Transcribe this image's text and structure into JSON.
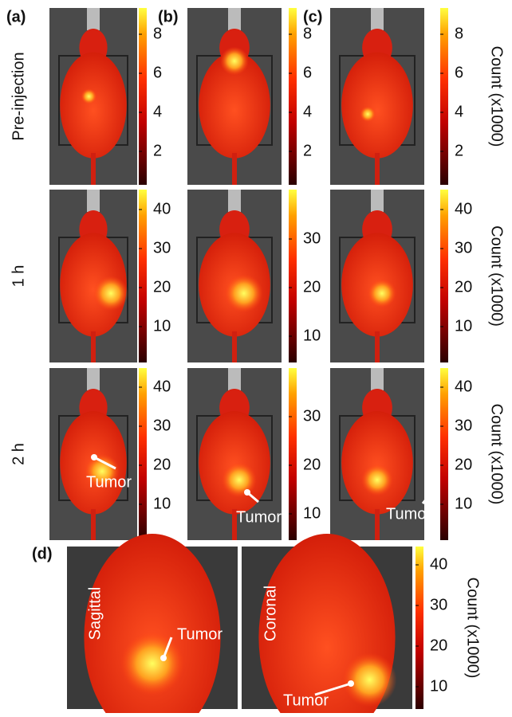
{
  "panel_labels": [
    "(a)",
    "(b)",
    "(c)",
    "(d)"
  ],
  "rows": [
    {
      "label": "Pre-injection",
      "count_label": "Count (x1000)",
      "colorbars": [
        [
          2,
          4,
          6,
          8
        ],
        [
          2,
          4,
          6,
          8
        ],
        [
          2,
          4,
          6,
          8
        ]
      ]
    },
    {
      "label": "1 h",
      "count_label": "Count (x1000)",
      "colorbars": [
        [
          10,
          20,
          30,
          40
        ],
        [
          10,
          20,
          30
        ],
        [
          10,
          20,
          30,
          40
        ]
      ]
    },
    {
      "label": "2 h",
      "count_label": "Count (x1000)",
      "colorbars": [
        [
          10,
          20,
          30,
          40
        ],
        [
          10,
          20,
          30
        ],
        [
          10,
          20,
          30,
          40
        ]
      ],
      "annotations": [
        "Tumor",
        "Tumor",
        "Tumor"
      ]
    }
  ],
  "panel_d": {
    "views": [
      {
        "label": "Sagittal",
        "annotation": "Tumor"
      },
      {
        "label": "Coronal",
        "annotation": "Tumor"
      }
    ],
    "colorbar": [
      10,
      20,
      30,
      40
    ],
    "count_label": "Count (x1000)"
  }
}
